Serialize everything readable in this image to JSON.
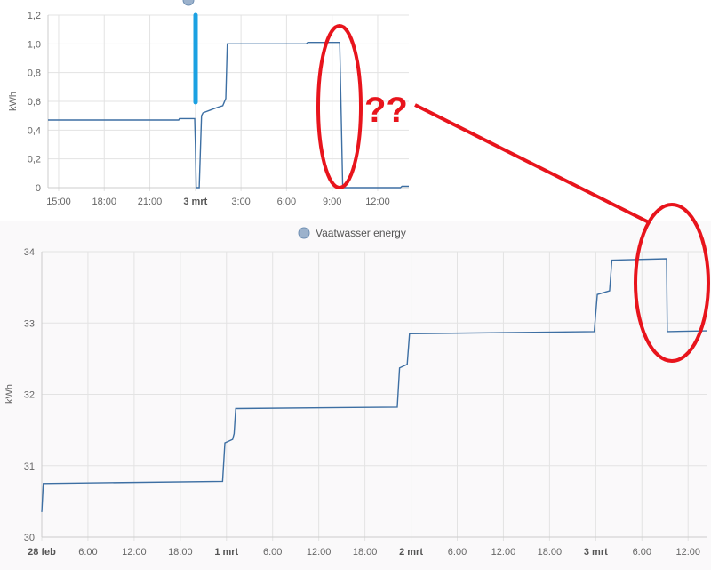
{
  "chart_data": [
    {
      "type": "line",
      "ylabel": "kWh",
      "ylim": [
        0,
        1.2
      ],
      "yticks": [
        "0",
        "0,2",
        "0,4",
        "0,6",
        "0,8",
        "1,0",
        "1,2"
      ],
      "xlim": [
        "03-02 14:18",
        "03-03 14:03"
      ],
      "xticks": [
        {
          "label": "15:00",
          "t": "03-02 15:00",
          "bold": false
        },
        {
          "label": "18:00",
          "t": "03-02 18:00",
          "bold": false
        },
        {
          "label": "21:00",
          "t": "03-02 21:00",
          "bold": false
        },
        {
          "label": "3 mrt",
          "t": "03-03 00:00",
          "bold": true
        },
        {
          "label": "3:00",
          "t": "03-03 03:00",
          "bold": false
        },
        {
          "label": "6:00",
          "t": "03-03 06:00",
          "bold": false
        },
        {
          "label": "9:00",
          "t": "03-03 09:00",
          "bold": false
        },
        {
          "label": "12:00",
          "t": "03-03 12:00",
          "bold": false
        }
      ],
      "grid": true,
      "series_color": "#3d6fa3",
      "points": [
        [
          "03-02 14:18",
          0.47
        ],
        [
          "03-02 22:54",
          0.47
        ],
        [
          "03-02 22:57",
          0.48
        ],
        [
          "03-02 23:57",
          0.48
        ],
        [
          "03-03 00:00",
          0.3
        ],
        [
          "03-03 00:03",
          0
        ],
        [
          "03-03 00:15",
          0
        ],
        [
          "03-03 00:24",
          0.5
        ],
        [
          "03-03 00:30",
          0.52
        ],
        [
          "03-03 01:00",
          0.54
        ],
        [
          "03-03 01:30",
          0.56
        ],
        [
          "03-03 01:48",
          0.57
        ],
        [
          "03-03 02:00",
          0.62
        ],
        [
          "03-03 02:06",
          1.0
        ],
        [
          "03-03 07:18",
          1.0
        ],
        [
          "03-03 07:24",
          1.01
        ],
        [
          "03-03 09:30",
          1.01
        ],
        [
          "03-03 09:42",
          0
        ],
        [
          "03-03 13:30",
          0
        ],
        [
          "03-03 13:36",
          0.01
        ],
        [
          "03-03 14:03",
          0.01
        ]
      ]
    },
    {
      "type": "line",
      "legend": "Vaatwasser energy",
      "legend_placement": "top",
      "ylabel": "kWh",
      "ylim": [
        30,
        34
      ],
      "yticks": [
        "30",
        "31",
        "32",
        "33",
        "34"
      ],
      "xlim": [
        "02-28 00:00",
        "03-03 14:24"
      ],
      "xticks": [
        {
          "label": "28 feb",
          "t": "02-28 00:00",
          "bold": true
        },
        {
          "label": "6:00",
          "t": "02-28 06:00",
          "bold": false
        },
        {
          "label": "12:00",
          "t": "02-28 12:00",
          "bold": false
        },
        {
          "label": "18:00",
          "t": "02-28 18:00",
          "bold": false
        },
        {
          "label": "1 mrt",
          "t": "03-01 00:00",
          "bold": true
        },
        {
          "label": "6:00",
          "t": "03-01 06:00",
          "bold": false
        },
        {
          "label": "12:00",
          "t": "03-01 12:00",
          "bold": false
        },
        {
          "label": "18:00",
          "t": "03-01 18:00",
          "bold": false
        },
        {
          "label": "2 mrt",
          "t": "03-02 00:00",
          "bold": true
        },
        {
          "label": "6:00",
          "t": "03-02 06:00",
          "bold": false
        },
        {
          "label": "12:00",
          "t": "03-02 12:00",
          "bold": false
        },
        {
          "label": "18:00",
          "t": "03-02 18:00",
          "bold": false
        },
        {
          "label": "3 mrt",
          "t": "03-03 00:00",
          "bold": true
        },
        {
          "label": "6:00",
          "t": "03-03 06:00",
          "bold": false
        },
        {
          "label": "12:00",
          "t": "03-03 12:00",
          "bold": false
        }
      ],
      "grid": true,
      "series_color": "#3d6fa3",
      "points": [
        [
          "02-28 00:00",
          30.35
        ],
        [
          "02-28 00:12",
          30.75
        ],
        [
          "02-28 23:30",
          30.78
        ],
        [
          "02-28 23:48",
          31.32
        ],
        [
          "03-01 00:48",
          31.37
        ],
        [
          "03-01 01:00",
          31.45
        ],
        [
          "03-01 01:12",
          31.8
        ],
        [
          "03-01 22:12",
          31.82
        ],
        [
          "03-01 22:30",
          32.37
        ],
        [
          "03-01 23:30",
          32.42
        ],
        [
          "03-01 23:48",
          32.85
        ],
        [
          "03-02 23:48",
          32.88
        ],
        [
          "03-03 00:12",
          33.4
        ],
        [
          "03-03 01:48",
          33.45
        ],
        [
          "03-03 02:06",
          33.88
        ],
        [
          "03-03 09:12",
          33.9
        ],
        [
          "03-03 09:18",
          32.88
        ],
        [
          "03-03 14:24",
          32.89
        ]
      ]
    }
  ],
  "annotation": {
    "text": "??",
    "color": "#e8141c",
    "marker_color": "#1ba1e2"
  }
}
